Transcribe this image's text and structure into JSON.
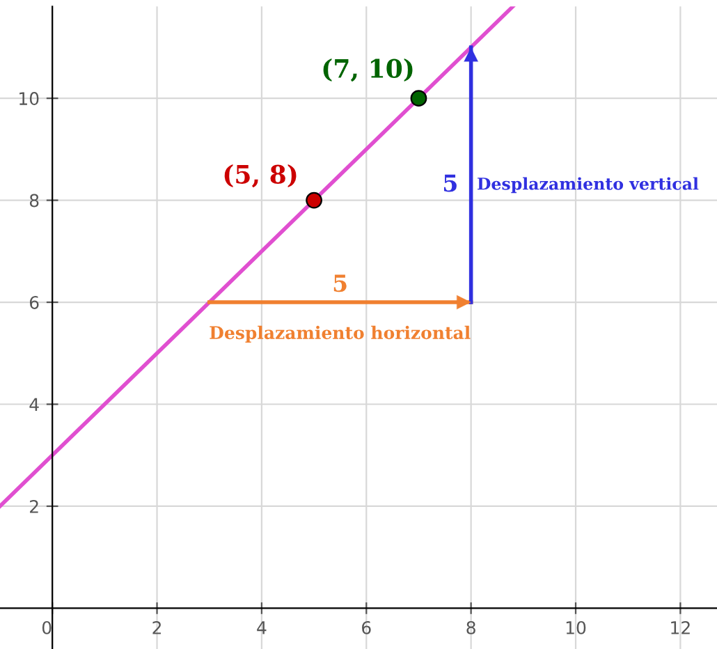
{
  "chart_data": {
    "type": "line",
    "xlim": [
      -1,
      12.7
    ],
    "ylim": [
      -0.8,
      11.8
    ],
    "xticks": [
      0,
      2,
      4,
      6,
      8,
      10,
      12
    ],
    "yticks": [
      2,
      4,
      6,
      8,
      10
    ],
    "grid": true,
    "series": [
      {
        "color": "#e04fd0",
        "x": [
          -1,
          8.8
        ],
        "values": [
          2,
          11.8
        ]
      },
      {
        "color": "#f08030",
        "x": [
          3,
          8
        ],
        "values": [
          6,
          6
        ]
      },
      {
        "color": "#3030e0",
        "x": [
          8,
          8
        ],
        "values": [
          6,
          11
        ]
      },
      {
        "type": "scatter",
        "color": "#cc0000",
        "x": [
          5
        ],
        "values": [
          8
        ]
      },
      {
        "type": "scatter",
        "color": "#006400",
        "x": [
          7
        ],
        "values": [
          10
        ]
      }
    ],
    "annotations": [
      {
        "text": "(5, 8)",
        "x": 5,
        "y": 8
      },
      {
        "text": "(7, 10)",
        "x": 7,
        "y": 10
      },
      {
        "text": "5",
        "x": 5.5,
        "y": 6
      },
      "Desplazamiento horizontal",
      "5",
      "Desplazamiento vertical"
    ]
  }
}
